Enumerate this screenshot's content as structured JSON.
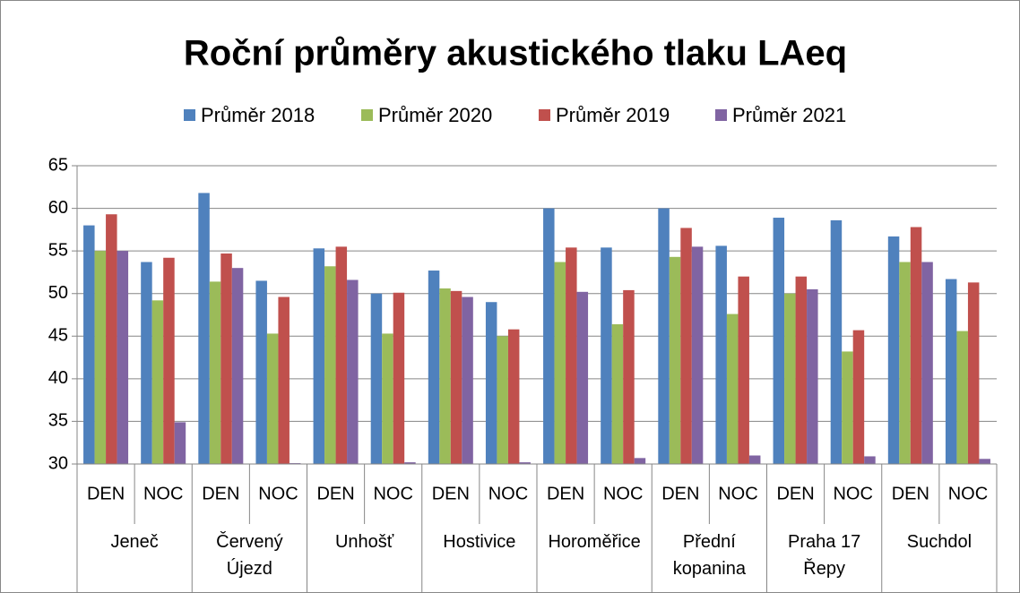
{
  "chart_data": {
    "type": "bar",
    "title": "Roční průměry akustického tlaku LAeq",
    "categories": [
      "DEN",
      "NOC",
      "DEN",
      "NOC",
      "DEN",
      "NOC",
      "DEN",
      "NOC",
      "DEN",
      "NOC",
      "DEN",
      "NOC",
      "DEN",
      "NOC",
      "DEN",
      "NOC"
    ],
    "groups": [
      "Jeneč",
      "Červený Újezd",
      "Unhošť",
      "Hostivice",
      "Horoměřice",
      "Přední kopanina",
      "Praha 17 Řepy",
      "Suchdol"
    ],
    "series": [
      {
        "name": "Průměr 2018",
        "color": "#4f81bd",
        "values": [
          58,
          53.7,
          61.8,
          51.5,
          55.3,
          50,
          52.7,
          49,
          60,
          55.4,
          60,
          55.6,
          58.9,
          58.6,
          56.7,
          51.7
        ]
      },
      {
        "name": "Průměr 2020",
        "color": "#9bbb59",
        "values": [
          55,
          49.2,
          51.4,
          45.3,
          53.2,
          45.3,
          50.6,
          45,
          53.7,
          46.4,
          54.3,
          47.6,
          50,
          43.2,
          53.7,
          45.6
        ]
      },
      {
        "name": "Průměr 2019",
        "color": "#c0504d",
        "values": [
          59.3,
          54.2,
          54.7,
          49.6,
          55.5,
          50.1,
          50.3,
          45.8,
          55.4,
          50.4,
          57.7,
          52,
          52,
          45.7,
          57.8,
          51.3
        ]
      },
      {
        "name": "Průměr 2021",
        "color": "#8064a2",
        "values": [
          55,
          34.9,
          53,
          30.1,
          51.6,
          30.2,
          49.6,
          30.2,
          50.2,
          30.7,
          55.5,
          31,
          50.5,
          30.9,
          53.7,
          30.6
        ]
      }
    ],
    "ylim": [
      30,
      65
    ],
    "yticks": [
      30,
      35,
      40,
      45,
      50,
      55,
      60,
      65
    ],
    "grid": true,
    "legend": "top"
  }
}
